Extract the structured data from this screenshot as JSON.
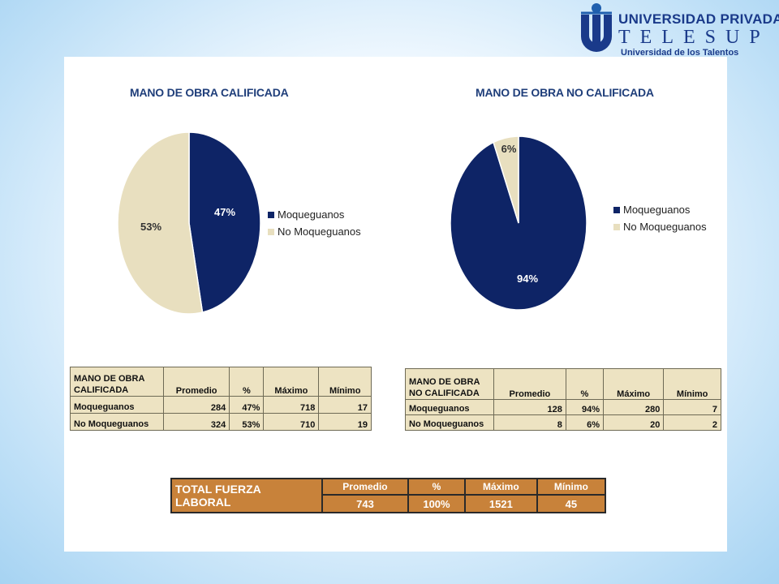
{
  "logo": {
    "line1": "UNIVERSIDAD PRIVADA",
    "line2": "TELESUP",
    "line3": "Universidad de los Talentos"
  },
  "colors": {
    "navy": "#0e2466",
    "beige": "#e8dfbf",
    "tan": "#ede3c2",
    "orange": "#c8823a"
  },
  "chart_data": [
    {
      "type": "pie",
      "title": "MANO DE OBRA CALIFICADA",
      "categories": [
        "Moqueguanos",
        "No Moqueguanos"
      ],
      "values": [
        47,
        53
      ],
      "labels": [
        "47%",
        "53%"
      ],
      "colors": [
        "#0e2466",
        "#e8dfbf"
      ],
      "legend": "right"
    },
    {
      "type": "pie",
      "title": "MANO DE OBRA NO CALIFICADA",
      "categories": [
        "Moqueguanos",
        "No Moqueguanos"
      ],
      "values": [
        94,
        6
      ],
      "labels": [
        "94%",
        "6%"
      ],
      "colors": [
        "#0e2466",
        "#e8dfbf"
      ],
      "legend": "right"
    }
  ],
  "table1": {
    "title": "MANO DE OBRA CALIFICADA",
    "headers": [
      "Promedio",
      "%",
      "Máximo",
      "Mínimo"
    ],
    "rows": [
      {
        "label": "Moqueguanos",
        "cells": [
          "284",
          "47%",
          "718",
          "17"
        ]
      },
      {
        "label": "No Moqueguanos",
        "cells": [
          "324",
          "53%",
          "710",
          "19"
        ]
      }
    ]
  },
  "table2": {
    "title": "MANO DE OBRA NO CALIFICADA",
    "headers": [
      "Promedio",
      "%",
      "Máximo",
      "Mínimo"
    ],
    "rows": [
      {
        "label": "Moqueguanos",
        "cells": [
          "128",
          "94%",
          "280",
          "7"
        ]
      },
      {
        "label": "No Moqueguanos",
        "cells": [
          "8",
          "6%",
          "20",
          "2"
        ]
      }
    ]
  },
  "total": {
    "label": "TOTAL FUERZA LABORAL",
    "headers": [
      "Promedio",
      "%",
      "Máximo",
      "Mínimo"
    ],
    "values": [
      "743",
      "100%",
      "1521",
      "45"
    ]
  }
}
